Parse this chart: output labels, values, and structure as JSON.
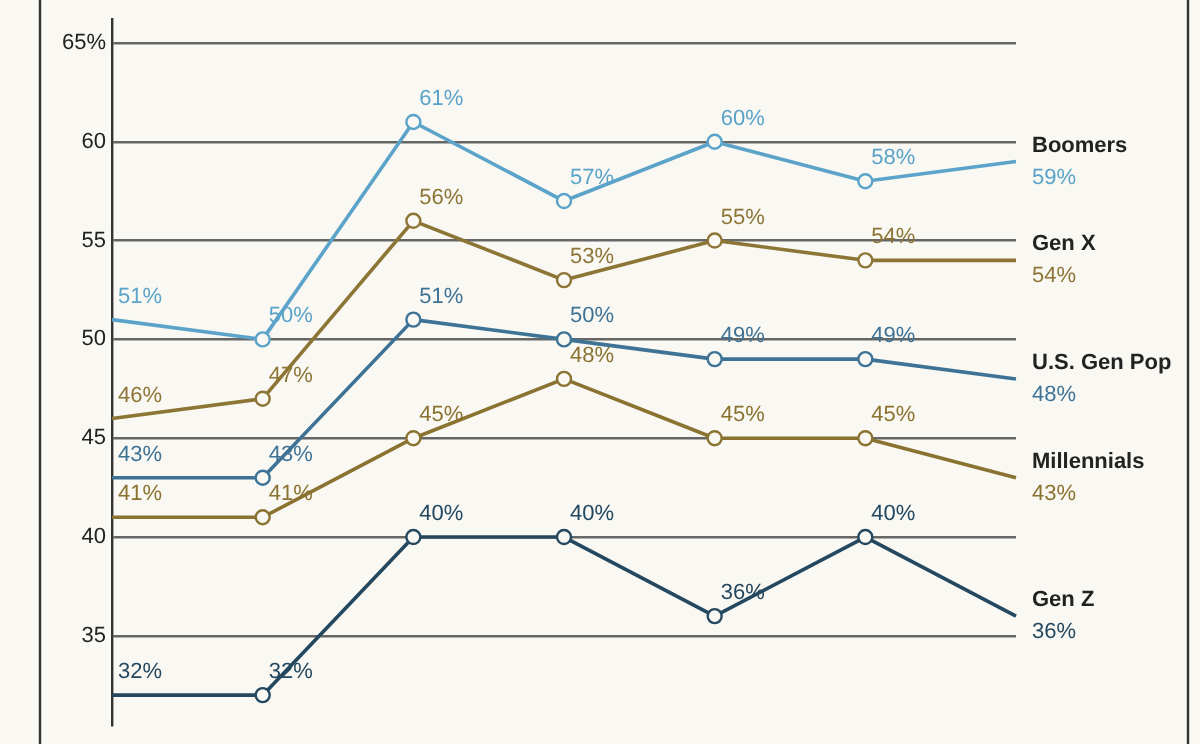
{
  "chart_data": {
    "type": "line",
    "categories": [
      null,
      null,
      null,
      null,
      null,
      null,
      null
    ],
    "series": [
      {
        "name": "Boomers",
        "color": "#5ba3c9",
        "values": [
          51,
          50,
          61,
          57,
          60,
          58,
          59
        ],
        "value_labels": [
          "51%",
          "50%",
          "61%",
          "57%",
          "60%",
          "58%",
          "59%"
        ]
      },
      {
        "name": "Gen X",
        "color": "#8c7535",
        "values": [
          46,
          47,
          56,
          53,
          55,
          54,
          54
        ],
        "value_labels": [
          "46%",
          "47%",
          "56%",
          "53%",
          "55%",
          "54%",
          "54%"
        ]
      },
      {
        "name": "U.S. Gen Pop",
        "color": "#3e7396",
        "values": [
          43,
          43,
          51,
          50,
          49,
          49,
          48
        ],
        "value_labels": [
          "43%",
          "43%",
          "51%",
          "50%",
          "49%",
          "49%",
          "48%"
        ]
      },
      {
        "name": "Millennials",
        "color": "#8a7230",
        "values": [
          41,
          41,
          45,
          48,
          45,
          45,
          43
        ],
        "value_labels": [
          "41%",
          "41%",
          "45%",
          "48%",
          "45%",
          "45%",
          "43%"
        ]
      },
      {
        "name": "Gen Z",
        "color": "#23485f",
        "values": [
          32,
          32,
          40,
          40,
          36,
          40,
          36
        ],
        "value_labels": [
          "32%",
          "32%",
          "40%",
          "40%",
          "36%",
          "40%",
          "36%"
        ]
      }
    ],
    "ylim": [
      30.5,
      66.2
    ],
    "yticks": [
      35,
      40,
      45,
      50,
      55,
      60,
      {
        "value": 65,
        "label": "65%"
      }
    ],
    "grid": "y",
    "legend": false,
    "marker": "circle",
    "line_style": "solid"
  }
}
